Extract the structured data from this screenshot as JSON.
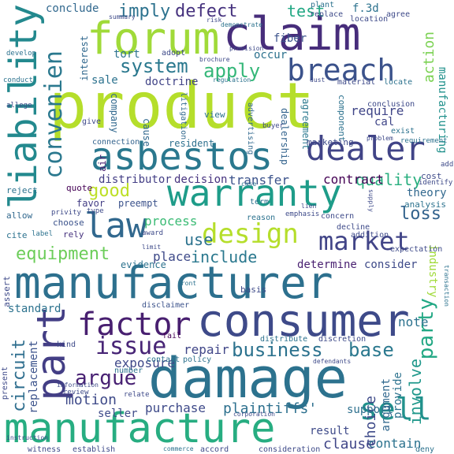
{
  "words": [
    {
      "text": "product",
      "color": "#b5de2b"
    },
    {
      "text": "manufacturer",
      "color": "#2d708e"
    },
    {
      "text": "damage",
      "color": "#2c728e"
    },
    {
      "text": "consumer",
      "color": "#3e4a89"
    },
    {
      "text": "manufacture",
      "color": "#27ad81"
    },
    {
      "text": "forum",
      "color": "#a0da39"
    },
    {
      "text": "claim",
      "color": "#472d7b"
    },
    {
      "text": "liability",
      "color": "#23898e"
    },
    {
      "text": "asbestos",
      "color": "#2a788e"
    },
    {
      "text": "warranty",
      "color": "#1e9c89"
    },
    {
      "text": "dealer",
      "color": "#414487"
    },
    {
      "text": "law",
      "color": "#31688e"
    },
    {
      "text": "part",
      "color": "#433e85"
    },
    {
      "text": "factor",
      "color": "#481f70"
    },
    {
      "text": "design",
      "color": "#b5de2b"
    },
    {
      "text": "breach",
      "color": "#3b528b"
    },
    {
      "text": "convenien",
      "color": "#2a788e"
    },
    {
      "text": "market",
      "color": "#414487"
    },
    {
      "text": "issue",
      "color": "#482576"
    },
    {
      "text": "argue",
      "color": "#482173"
    },
    {
      "text": "business",
      "color": "#2c728e"
    },
    {
      "text": "base",
      "color": "#2a788e"
    },
    {
      "text": "sell",
      "color": "#21918c"
    },
    {
      "text": "system",
      "color": "#2a788e"
    },
    {
      "text": "apply",
      "color": "#35b779"
    },
    {
      "text": "defect",
      "color": "#46327e"
    },
    {
      "text": "imply",
      "color": "#2c728e"
    },
    {
      "text": "test",
      "color": "#22a884"
    },
    {
      "text": "good",
      "color": "#bddf26"
    },
    {
      "text": "equipment",
      "color": "#6ccd5a"
    },
    {
      "text": "include",
      "color": "#2a788e"
    },
    {
      "text": "circuit",
      "color": "#2e6e8e"
    },
    {
      "text": "party",
      "color": "#22a884"
    },
    {
      "text": "loss",
      "color": "#33638d"
    },
    {
      "text": "action",
      "color": "#7ad151"
    },
    {
      "text": "quality",
      "color": "#29af7f"
    },
    {
      "text": "use",
      "color": "#2c728e"
    },
    {
      "text": "process",
      "color": "#3bbb75"
    },
    {
      "text": "motion",
      "color": "#3e4a89"
    },
    {
      "text": "plaintiffs'",
      "color": "#2d708e"
    },
    {
      "text": "purchase",
      "color": "#3e4a89"
    },
    {
      "text": "result",
      "color": "#3e4a89"
    },
    {
      "text": "clause",
      "color": "#404688"
    },
    {
      "text": "contain",
      "color": "#2c728e"
    },
    {
      "text": "involve",
      "color": "#1f988b"
    },
    {
      "text": "choice",
      "color": "#3e4a89"
    },
    {
      "text": "exposure",
      "color": "#3f4889"
    },
    {
      "text": "repair",
      "color": "#404688"
    },
    {
      "text": "note",
      "color": "#2c728e"
    },
    {
      "text": "transfer",
      "color": "#3b528b"
    },
    {
      "text": "decision",
      "color": "#46337f"
    },
    {
      "text": "contract",
      "color": "#440154"
    },
    {
      "text": "require",
      "color": "#404688"
    },
    {
      "text": "theory",
      "color": "#31688e"
    },
    {
      "text": "consider",
      "color": "#3e4a89"
    },
    {
      "text": "determine",
      "color": "#481f70"
    },
    {
      "text": "place",
      "color": "#3e4a89"
    },
    {
      "text": "distributor",
      "color": "#433e85"
    },
    {
      "text": "replacement",
      "color": "#3b528b"
    },
    {
      "text": "standard",
      "color": "#2c728e"
    },
    {
      "text": "seller",
      "color": "#3e4a89"
    },
    {
      "text": "support",
      "color": "#2d708e"
    },
    {
      "text": "conclude",
      "color": "#31688e"
    },
    {
      "text": "doctrine",
      "color": "#414487"
    },
    {
      "text": "occur",
      "color": "#2c728e"
    },
    {
      "text": "fiber",
      "color": "#3b528b"
    },
    {
      "text": "sale",
      "color": "#2c728e"
    },
    {
      "text": "tort",
      "color": "#2c728e"
    },
    {
      "text": "f.3d",
      "color": "#2c728e"
    },
    {
      "text": "cal",
      "color": "#404688"
    },
    {
      "text": "provide",
      "color": "#2c728e"
    },
    {
      "text": "argument",
      "color": "#31688e"
    },
    {
      "text": "industry",
      "color": "#a0da39"
    },
    {
      "text": "manufacturing",
      "color": "#21918c"
    },
    {
      "text": "interest",
      "color": "#31688e"
    },
    {
      "text": "evidence",
      "color": "#2c728e"
    },
    {
      "text": "favor",
      "color": "#433e85"
    },
    {
      "text": "preempt",
      "color": "#3b528b"
    },
    {
      "text": "cause",
      "color": "#31688e"
    },
    {
      "text": "company",
      "color": "#31688e"
    },
    {
      "text": "connection",
      "color": "#33638d"
    },
    {
      "text": "resident",
      "color": "#2d708e"
    },
    {
      "text": "air",
      "color": "#481f70"
    },
    {
      "text": "quote",
      "color": "#440154"
    },
    {
      "text": "choose",
      "color": "#3b528b"
    },
    {
      "text": "rely",
      "color": "#46327e"
    },
    {
      "text": "allow",
      "color": "#31688e"
    },
    {
      "text": "cite",
      "color": "#2c728e"
    },
    {
      "text": "reject",
      "color": "#2c728e"
    },
    {
      "text": "basis",
      "color": "#3e4a89"
    },
    {
      "text": "assert",
      "color": "#3e4a89"
    },
    {
      "text": "cost",
      "color": "#3e4a89"
    },
    {
      "text": "analysis",
      "color": "#2c728e"
    },
    {
      "text": "expectation",
      "color": "#3e4a89"
    },
    {
      "text": "dealership",
      "color": "#33638d"
    },
    {
      "text": "agreement",
      "color": "#2a788e"
    },
    {
      "text": "component",
      "color": "#2c728e"
    },
    {
      "text": "advertising",
      "color": "#31688e"
    },
    {
      "text": "marketing",
      "color": "#3e4a89"
    },
    {
      "text": "view",
      "color": "#2c728e"
    },
    {
      "text": "give",
      "color": "#3e4a89"
    },
    {
      "text": "disclaimer",
      "color": "#3b528b"
    },
    {
      "text": "accord",
      "color": "#3e4a89"
    },
    {
      "text": "consideration",
      "color": "#3e4a89"
    },
    {
      "text": "witness",
      "color": "#3e4a89"
    },
    {
      "text": "establish",
      "color": "#3e4a89"
    },
    {
      "text": "deny",
      "color": "#2c728e"
    },
    {
      "text": "kind",
      "color": "#3e4a89"
    },
    {
      "text": "present",
      "color": "#3e4a89"
    },
    {
      "text": "decline",
      "color": "#3e4a89"
    },
    {
      "text": "addition",
      "color": "#3e4a89"
    },
    {
      "text": "term",
      "color": "#2c728e"
    },
    {
      "text": "reason",
      "color": "#2c728e"
    },
    {
      "text": "concern",
      "color": "#3e4a89"
    },
    {
      "text": "litigation",
      "color": "#31688e"
    },
    {
      "text": "fail",
      "color": "#440154"
    },
    {
      "text": "contact",
      "color": "#2c728e"
    },
    {
      "text": "policy",
      "color": "#2c728e"
    },
    {
      "text": "number",
      "color": "#2c728e"
    },
    {
      "text": "review",
      "color": "#3e4a89"
    },
    {
      "text": "relate",
      "color": "#3e4a89"
    },
    {
      "text": "distribute",
      "color": "#2c728e"
    },
    {
      "text": "discretion",
      "color": "#3e4a89"
    },
    {
      "text": "adopt",
      "color": "#3e4a89"
    },
    {
      "text": "replace",
      "color": "#3e4a89"
    },
    {
      "text": "agree",
      "color": "#3e4a89"
    },
    {
      "text": "location",
      "color": "#3e4a89"
    },
    {
      "text": "plant",
      "color": "#2c728e"
    },
    {
      "text": "material",
      "color": "#3e4a89"
    },
    {
      "text": "locate",
      "color": "#2c728e"
    },
    {
      "text": "conclusion",
      "color": "#3e4a89"
    },
    {
      "text": "buyer",
      "color": "#3e4a89"
    },
    {
      "text": "exist",
      "color": "#2c728e"
    },
    {
      "text": "requirement",
      "color": "#2c728e"
    },
    {
      "text": "identify",
      "color": "#3e4a89"
    },
    {
      "text": "add",
      "color": "#3e4a89"
    },
    {
      "text": "label",
      "color": "#2c728e"
    },
    {
      "text": "privity",
      "color": "#3e4a89"
    },
    {
      "text": "emphasis",
      "color": "#3e4a89"
    },
    {
      "text": "type",
      "color": "#3e4a89"
    },
    {
      "text": "award",
      "color": "#3e4a89"
    },
    {
      "text": "develop",
      "color": "#2c728e"
    },
    {
      "text": "allege",
      "color": "#3e4a89"
    },
    {
      "text": "conduct",
      "color": "#2c728e"
    },
    {
      "text": "summary",
      "color": "#3e4a89"
    },
    {
      "text": "risk",
      "color": "#3e4a89"
    },
    {
      "text": "demonstrate",
      "color": "#2c728e"
    },
    {
      "text": "instruction",
      "color": "#3e4a89"
    },
    {
      "text": "commerce",
      "color": "#2c728e"
    },
    {
      "text": "information",
      "color": "#3e4a89"
    },
    {
      "text": "front",
      "color": "#2c728e"
    },
    {
      "text": "brochure",
      "color": "#3e4a89"
    },
    {
      "text": "provision",
      "color": "#3e4a89"
    },
    {
      "text": "regulation",
      "color": "#2c728e"
    },
    {
      "text": "dust",
      "color": "#3e4a89"
    },
    {
      "text": "problem",
      "color": "#3e4a89"
    },
    {
      "text": "limit",
      "color": "#3e4a89"
    },
    {
      "text": "defendants",
      "color": "#3e4a89"
    },
    {
      "text": "corporation",
      "color": "#3e4a89"
    },
    {
      "text": "transaction",
      "color": "#2c728e"
    },
    {
      "text": "supply",
      "color": "#3e4a89"
    },
    {
      "text": "lien",
      "color": "#3e4a89"
    },
    {
      "text": "case",
      "color": "#2c728e"
    }
  ]
}
